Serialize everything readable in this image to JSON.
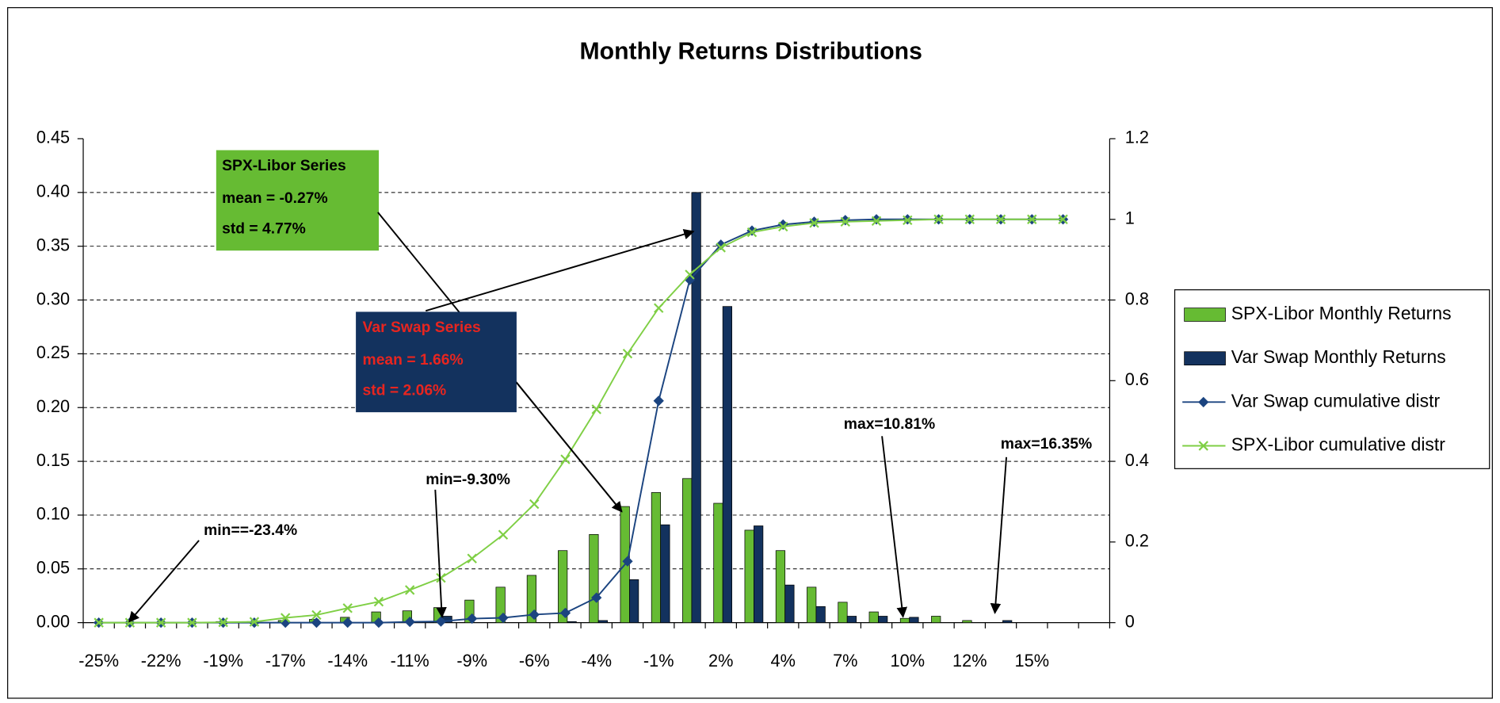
{
  "chart_data": {
    "type": "bar",
    "title": "Monthly Returns Distributions",
    "categories": [
      "-25%",
      null,
      "-22%",
      null,
      "-19%",
      null,
      "-17%",
      null,
      "-14%",
      null,
      "-11%",
      null,
      "-9%",
      null,
      "-6%",
      null,
      "-4%",
      null,
      "-1%",
      null,
      "2%",
      null,
      "4%",
      null,
      "7%",
      null,
      "10%",
      null,
      "12%",
      null,
      "15%",
      null,
      null
    ],
    "series": [
      {
        "name": "SPX-Libor Monthly Returns",
        "type": "bar",
        "color": "#66bb33",
        "values": [
          0,
          0,
          0,
          0,
          0.001,
          0.001,
          0.002,
          0.003,
          0.005,
          0.01,
          0.011,
          0.014,
          0.021,
          0.033,
          0.044,
          0.067,
          0.082,
          0.108,
          0.121,
          0.134,
          0.111,
          0.086,
          0.067,
          0.033,
          0.019,
          0.01,
          0.004,
          0.006,
          0.002,
          0,
          0,
          0,
          null
        ]
      },
      {
        "name": "Var Swap Monthly Returns",
        "type": "bar",
        "color": "#13325e",
        "values": [
          0,
          0,
          0,
          0,
          0,
          0,
          0,
          0,
          0,
          0,
          0,
          0.006,
          0,
          0,
          0,
          0.001,
          0.002,
          0.04,
          0.091,
          0.4,
          0.294,
          0.09,
          0.035,
          0.015,
          0.006,
          0.006,
          0.005,
          0,
          0,
          0.002,
          0,
          0,
          null
        ]
      },
      {
        "name": "Var Swap cumulative distr",
        "type": "line",
        "axis": "y2",
        "marker": "diamond",
        "color": "#1b4480",
        "values": [
          0,
          0,
          0,
          0,
          0,
          0,
          0,
          0,
          0,
          0,
          0.002,
          0.003,
          0.01,
          0.012,
          0.02,
          0.024,
          0.062,
          0.152,
          0.55,
          0.85,
          0.937,
          0.972,
          0.987,
          0.994,
          0.998,
          1,
          1,
          1,
          1,
          1,
          1,
          1,
          null
        ]
      },
      {
        "name": "SPX-Libor cumulative distr",
        "type": "line",
        "axis": "y2",
        "marker": "x",
        "color": "#7fcf45",
        "values": [
          0,
          0,
          0,
          0,
          0.001,
          0.002,
          0.012,
          0.019,
          0.036,
          0.052,
          0.081,
          0.111,
          0.159,
          0.218,
          0.294,
          0.405,
          0.529,
          0.667,
          0.78,
          0.863,
          0.93,
          0.968,
          0.982,
          0.991,
          0.994,
          0.996,
          0.998,
          1,
          1,
          1,
          1,
          1,
          null
        ]
      }
    ],
    "ylim": [
      0,
      0.45
    ],
    "yticks": [
      {
        "value": 0,
        "label": "0.00"
      },
      {
        "value": 0.05,
        "label": "0.05"
      },
      {
        "value": 0.1,
        "label": "0.10"
      },
      {
        "value": 0.15,
        "label": "0.15"
      },
      {
        "value": 0.2,
        "label": "0.20"
      },
      {
        "value": 0.25,
        "label": "0.25"
      },
      {
        "value": 0.3,
        "label": "0.30"
      },
      {
        "value": 0.35,
        "label": "0.35"
      },
      {
        "value": 0.4,
        "label": "0.40"
      },
      {
        "value": 0.45,
        "label": "0.45"
      }
    ],
    "y2lim": [
      0,
      1.2
    ],
    "y2ticks": [
      0,
      0.2,
      0.4,
      0.6,
      0.8,
      1,
      1.2
    ],
    "grid": true,
    "legend": "right",
    "annotations": [
      "SPX-Libor Series",
      "mean = -0.27%",
      "std = 4.77%",
      "Var Swap Series",
      "mean = 1.66%",
      "std = 2.06%",
      "min==-23.4%",
      "min=-9.30%",
      "max=10.81%",
      "max=16.35%"
    ]
  }
}
